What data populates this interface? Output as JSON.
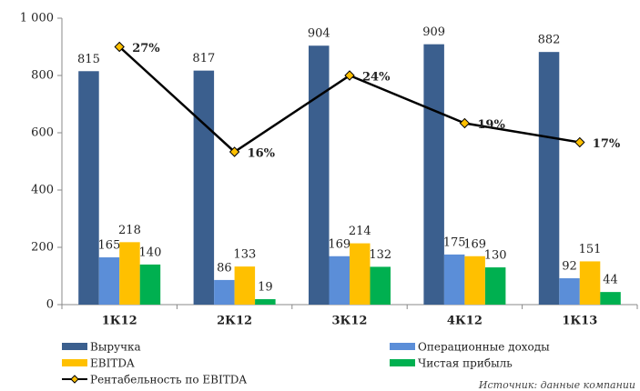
{
  "chart_data": {
    "type": "bar",
    "categories": [
      "1К12",
      "2К12",
      "3К12",
      "4К12",
      "1К13"
    ],
    "series": [
      {
        "name": "Выручка",
        "color": "#3b5f8e",
        "values": [
          815,
          817,
          904,
          909,
          882
        ]
      },
      {
        "name": "Операционные доходы",
        "color": "#5b8ed8",
        "values": [
          165,
          86,
          169,
          175,
          92
        ]
      },
      {
        "name": "EBITDA",
        "color": "#ffc000",
        "values": [
          218,
          133,
          214,
          169,
          151
        ]
      },
      {
        "name": "Чистая прибыль",
        "color": "#00b050",
        "values": [
          140,
          19,
          132,
          130,
          44
        ]
      },
      {
        "name": "Рентабельность по EBITDA",
        "type": "line",
        "axis": "y2",
        "color": "#000000",
        "marker_color": "#ffc000",
        "values": [
          27,
          16,
          24,
          19,
          17
        ],
        "value_labels": [
          "27%",
          "16%",
          "24%",
          "19%",
          "17%"
        ]
      }
    ],
    "ylim": [
      0,
      1000
    ],
    "yticks": [
      0,
      200,
      400,
      600,
      800,
      {
        "value": 1000,
        "label": "1 000"
      }
    ],
    "y2lim": [
      0,
      30
    ],
    "source": "Источник: данные компании"
  }
}
